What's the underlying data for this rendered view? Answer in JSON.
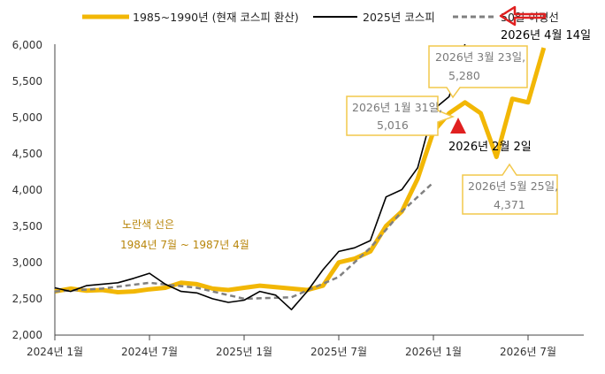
{
  "chart_data": {
    "type": "line",
    "title": "",
    "ylabel": "",
    "xlabel": "",
    "ylim": [
      2000,
      6000
    ],
    "yticks": [
      "2,000",
      "2,500",
      "3,000",
      "3,500",
      "4,000",
      "4,500",
      "5,000",
      "5,500",
      "6,000"
    ],
    "xticks": [
      "2024년 1월",
      "2024년 7월",
      "2025년 1월",
      "2025년 7월",
      "2026년 1월",
      "2026년 7월"
    ],
    "legend_position": "top",
    "series": [
      {
        "name": "1985~1990년 (현재 코스피 환산)",
        "color": "#f2b705",
        "points": [
          [
            "2024-01",
            2600
          ],
          [
            "2024-02",
            2640
          ],
          [
            "2024-03",
            2610
          ],
          [
            "2024-04",
            2620
          ],
          [
            "2024-05",
            2590
          ],
          [
            "2024-06",
            2600
          ],
          [
            "2024-07",
            2630
          ],
          [
            "2024-08",
            2650
          ],
          [
            "2024-09",
            2720
          ],
          [
            "2024-10",
            2700
          ],
          [
            "2024-11",
            2640
          ],
          [
            "2024-12",
            2620
          ],
          [
            "2025-01",
            2650
          ],
          [
            "2025-02",
            2680
          ],
          [
            "2025-03",
            2660
          ],
          [
            "2025-04",
            2640
          ],
          [
            "2025-05",
            2620
          ],
          [
            "2025-06",
            2680
          ],
          [
            "2025-07",
            3000
          ],
          [
            "2025-08",
            3050
          ],
          [
            "2025-09",
            3150
          ],
          [
            "2025-10",
            3500
          ],
          [
            "2025-11",
            3700
          ],
          [
            "2025-12",
            4150
          ],
          [
            "2026-01",
            4800
          ],
          [
            "2026-02",
            5050
          ],
          [
            "2026-03",
            5200
          ],
          [
            "2026-04",
            5050
          ],
          [
            "2026-05",
            4450
          ],
          [
            "2026-06",
            5250
          ],
          [
            "2026-07",
            5200
          ],
          [
            "2026-08",
            5950
          ]
        ]
      },
      {
        "name": "2025년 코스피",
        "color": "#000000",
        "points": [
          [
            "2024-01",
            2650
          ],
          [
            "2024-02",
            2600
          ],
          [
            "2024-03",
            2680
          ],
          [
            "2024-04",
            2700
          ],
          [
            "2024-05",
            2720
          ],
          [
            "2024-06",
            2780
          ],
          [
            "2024-07",
            2850
          ],
          [
            "2024-08",
            2700
          ],
          [
            "2024-09",
            2600
          ],
          [
            "2024-10",
            2580
          ],
          [
            "2024-11",
            2500
          ],
          [
            "2024-12",
            2450
          ],
          [
            "2025-01",
            2480
          ],
          [
            "2025-02",
            2600
          ],
          [
            "2025-03",
            2550
          ],
          [
            "2025-04",
            2350
          ],
          [
            "2025-05",
            2600
          ],
          [
            "2025-06",
            2900
          ],
          [
            "2025-07",
            3150
          ],
          [
            "2025-08",
            3200
          ],
          [
            "2025-09",
            3300
          ],
          [
            "2025-10",
            3900
          ],
          [
            "2025-11",
            4000
          ],
          [
            "2025-12",
            4300
          ],
          [
            "2026-01",
            5100
          ],
          [
            "2026-02",
            5280
          ],
          [
            "2026-03",
            6000
          ]
        ]
      },
      {
        "name": "50일 이평선",
        "color": "#808080",
        "points": [
          [
            "2024-01",
            2600
          ],
          [
            "2024-04",
            2640
          ],
          [
            "2024-07",
            2720
          ],
          [
            "2024-10",
            2650
          ],
          [
            "2025-01",
            2500
          ],
          [
            "2025-04",
            2520
          ],
          [
            "2025-07",
            2800
          ],
          [
            "2025-09",
            3200
          ],
          [
            "2025-11",
            3700
          ],
          [
            "2026-01",
            4100
          ]
        ]
      }
    ],
    "annotations": {
      "note_line1": "노란색 선은",
      "note_line2": "1984년 7월 ~ 1987년 4월",
      "box1_line1": "2026년 1월 31일,",
      "box1_line2": "5,016",
      "box2_line1": "2026년 3월 23일,",
      "box2_line2": "5,280",
      "box3_line1": "2026년 5월 25일,",
      "box3_line2": "4,371",
      "marker_label": "2026년 2월 2일",
      "arrow_label": "2026년 4월 14일"
    }
  }
}
